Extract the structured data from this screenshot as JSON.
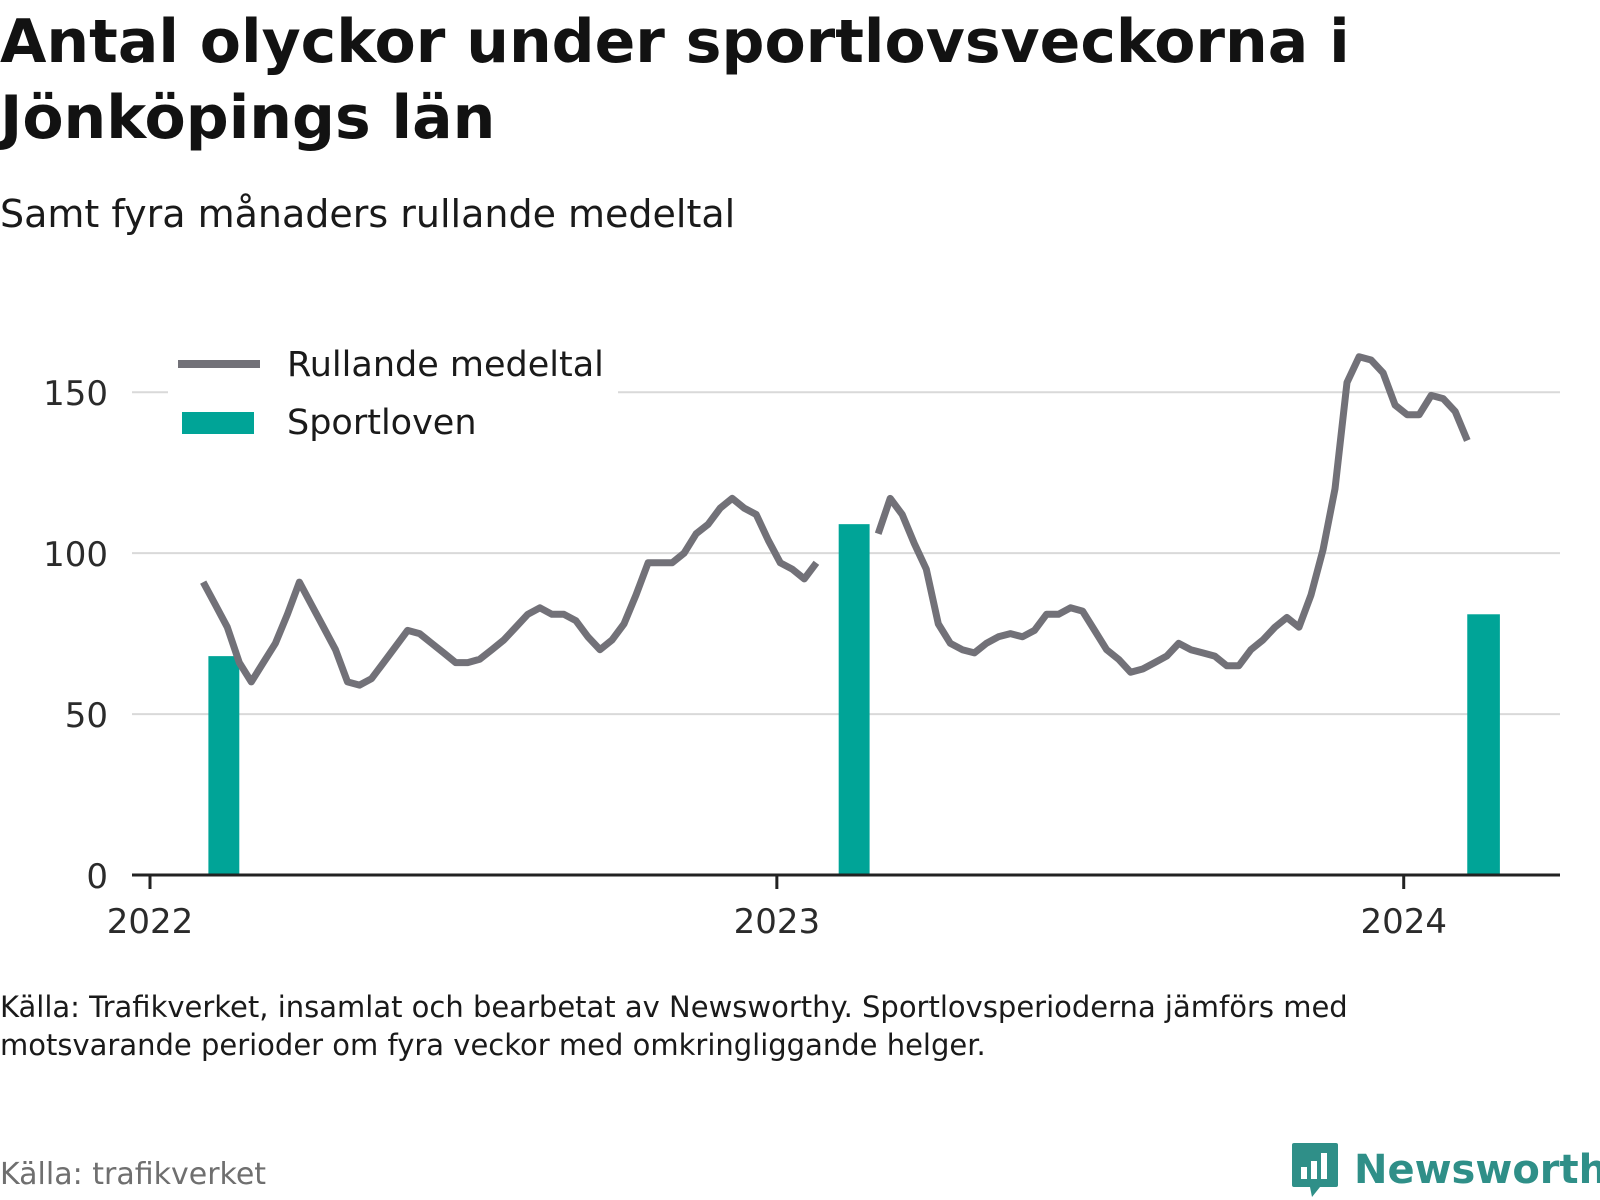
{
  "title": "Antal olyckor under sportlovsveckorna i Jönköpings län",
  "subtitle": "Samt fyra månaders rullande medeltal",
  "note": "Källa: Trafikverket, insamlat och bearbetat av Newsworthy. Sportlovsperioderna jämförs med motsvarande perioder om fyra veckor med omkringliggande helger.",
  "source": "Källa: trafikverket",
  "brand": {
    "name": "Newsworthy",
    "icon": "bar-chart-speech-bubble-icon"
  },
  "colors": {
    "line": "#727178",
    "bar": "#00a497",
    "grid": "#d9d9d9",
    "axis": "#222222",
    "brand": "#2f8f88"
  },
  "chart_data": {
    "type": "bar+line",
    "ylim": [
      0,
      160
    ],
    "yticks": [
      "0",
      "50",
      "100",
      "150"
    ],
    "ytick_values": [
      0,
      50,
      100,
      150
    ],
    "xlim": [
      "2022-01-01",
      "2024-04-01"
    ],
    "xticks": [
      "2022",
      "2023",
      "2024"
    ],
    "xtick_dates": [
      "2022-01-01",
      "2023-01-01",
      "2024-01-01"
    ],
    "grid": true,
    "legend_position": "top-left",
    "series": [
      {
        "name": "Rullande medeltal",
        "type": "line",
        "points": [
          [
            "2022-02-01",
            91
          ],
          [
            "2022-02-08",
            84
          ],
          [
            "2022-02-15",
            77
          ],
          [
            "2022-02-22",
            66
          ],
          [
            "2022-03-01",
            60
          ],
          [
            "2022-03-08",
            66
          ],
          [
            "2022-03-15",
            72
          ],
          [
            "2022-03-22",
            81
          ],
          [
            "2022-03-29",
            91
          ],
          [
            "2022-04-05",
            84
          ],
          [
            "2022-04-12",
            77
          ],
          [
            "2022-04-19",
            70
          ],
          [
            "2022-04-26",
            60
          ],
          [
            "2022-05-03",
            59
          ],
          [
            "2022-05-10",
            61
          ],
          [
            "2022-05-17",
            66
          ],
          [
            "2022-05-24",
            71
          ],
          [
            "2022-05-31",
            76
          ],
          [
            "2022-06-07",
            75
          ],
          [
            "2022-06-14",
            72
          ],
          [
            "2022-06-21",
            69
          ],
          [
            "2022-06-28",
            66
          ],
          [
            "2022-07-05",
            66
          ],
          [
            "2022-07-12",
            67
          ],
          [
            "2022-07-19",
            70
          ],
          [
            "2022-07-26",
            73
          ],
          [
            "2022-08-02",
            77
          ],
          [
            "2022-08-09",
            81
          ],
          [
            "2022-08-16",
            83
          ],
          [
            "2022-08-23",
            81
          ],
          [
            "2022-08-30",
            81
          ],
          [
            "2022-09-06",
            79
          ],
          [
            "2022-09-13",
            74
          ],
          [
            "2022-09-20",
            70
          ],
          [
            "2022-09-27",
            73
          ],
          [
            "2022-10-04",
            78
          ],
          [
            "2022-10-11",
            87
          ],
          [
            "2022-10-18",
            97
          ],
          [
            "2022-10-25",
            97
          ],
          [
            "2022-11-01",
            97
          ],
          [
            "2022-11-08",
            100
          ],
          [
            "2022-11-15",
            106
          ],
          [
            "2022-11-22",
            109
          ],
          [
            "2022-11-29",
            114
          ],
          [
            "2022-12-06",
            117
          ],
          [
            "2022-12-13",
            114
          ],
          [
            "2022-12-20",
            112
          ],
          [
            "2022-12-27",
            104
          ],
          [
            "2023-01-03",
            97
          ],
          [
            "2023-01-10",
            95
          ],
          [
            "2023-01-17",
            92
          ],
          [
            "2023-01-24",
            97
          ],
          [
            "2023-01-31",
            null
          ],
          [
            "2023-03-01",
            106
          ],
          [
            "2023-03-08",
            117
          ],
          [
            "2023-03-15",
            112
          ],
          [
            "2023-03-22",
            103
          ],
          [
            "2023-03-29",
            95
          ],
          [
            "2023-04-05",
            78
          ],
          [
            "2023-04-12",
            72
          ],
          [
            "2023-04-19",
            70
          ],
          [
            "2023-04-26",
            69
          ],
          [
            "2023-05-03",
            72
          ],
          [
            "2023-05-10",
            74
          ],
          [
            "2023-05-17",
            75
          ],
          [
            "2023-05-24",
            74
          ],
          [
            "2023-05-31",
            76
          ],
          [
            "2023-06-07",
            81
          ],
          [
            "2023-06-14",
            81
          ],
          [
            "2023-06-21",
            83
          ],
          [
            "2023-06-28",
            82
          ],
          [
            "2023-07-05",
            76
          ],
          [
            "2023-07-12",
            70
          ],
          [
            "2023-07-19",
            67
          ],
          [
            "2023-07-26",
            63
          ],
          [
            "2023-08-02",
            64
          ],
          [
            "2023-08-09",
            66
          ],
          [
            "2023-08-16",
            68
          ],
          [
            "2023-08-23",
            72
          ],
          [
            "2023-08-30",
            70
          ],
          [
            "2023-09-06",
            69
          ],
          [
            "2023-09-13",
            68
          ],
          [
            "2023-09-20",
            65
          ],
          [
            "2023-09-27",
            65
          ],
          [
            "2023-10-04",
            70
          ],
          [
            "2023-10-11",
            73
          ],
          [
            "2023-10-18",
            77
          ],
          [
            "2023-10-25",
            80
          ],
          [
            "2023-11-01",
            77
          ],
          [
            "2023-11-08",
            87
          ],
          [
            "2023-11-15",
            101
          ],
          [
            "2023-11-22",
            120
          ],
          [
            "2023-11-29",
            153
          ],
          [
            "2023-12-06",
            161
          ],
          [
            "2023-12-13",
            160
          ],
          [
            "2023-12-20",
            156
          ],
          [
            "2023-12-27",
            146
          ],
          [
            "2024-01-03",
            143
          ],
          [
            "2024-01-10",
            143
          ],
          [
            "2024-01-17",
            149
          ],
          [
            "2024-01-24",
            148
          ],
          [
            "2024-01-31",
            144
          ],
          [
            "2024-02-07",
            135
          ]
        ]
      },
      {
        "name": "Sportloven",
        "type": "bar",
        "bars": [
          {
            "start": "2022-02-04",
            "end": "2022-02-22",
            "value": 68
          },
          {
            "start": "2023-02-06",
            "end": "2023-02-24",
            "value": 109
          },
          {
            "start": "2024-02-07",
            "end": "2024-02-26",
            "value": 81
          }
        ]
      }
    ]
  }
}
